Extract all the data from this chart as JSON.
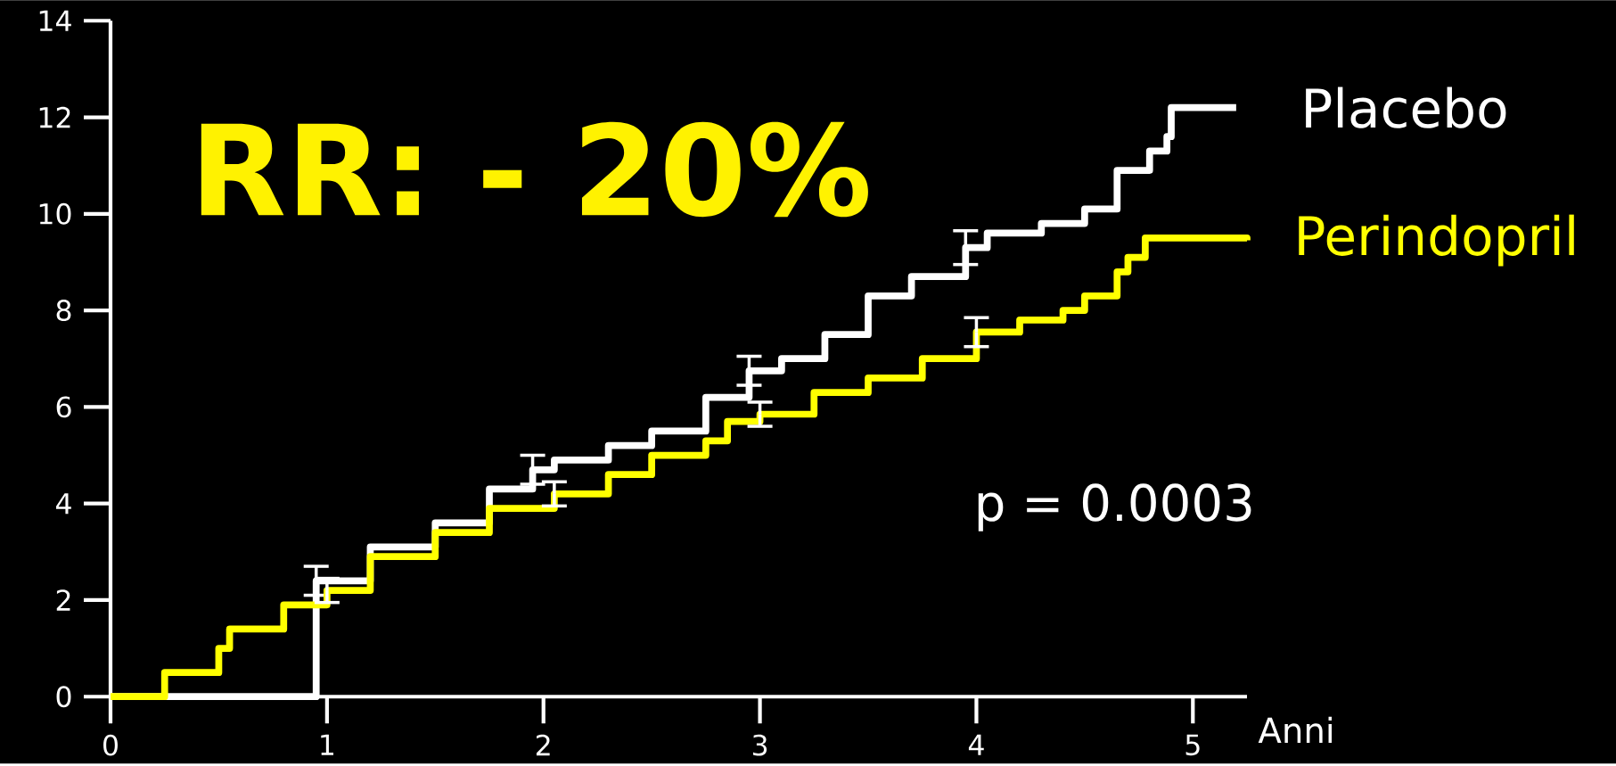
{
  "chart_data": {
    "type": "step",
    "xlabel": "Anni",
    "annotations": [
      "RR: - 20%",
      "p = 0.0003"
    ],
    "xlim": [
      0,
      5.25
    ],
    "xticks": [
      0,
      1,
      2,
      3,
      4,
      5
    ],
    "ylim": [
      0,
      14
    ],
    "yticks": [
      0,
      2,
      4,
      6,
      8,
      10,
      12,
      14
    ],
    "marker": "none",
    "line_style": "solid",
    "series": [
      {
        "name": "Placebo",
        "color": "#ffffff",
        "x": [
          0,
          0.25,
          0.5,
          0.55,
          0.8,
          0.95,
          1.2,
          1.5,
          1.75,
          1.95,
          2.05,
          2.3,
          2.5,
          2.75,
          2.95,
          3.1,
          3.3,
          3.5,
          3.7,
          3.95,
          4.05,
          4.3,
          4.5,
          4.65,
          4.8,
          4.88,
          4.9,
          5.2
        ],
        "values": [
          0,
          null,
          null,
          null,
          null,
          2.4,
          3.1,
          3.6,
          4.3,
          4.7,
          4.9,
          5.2,
          5.5,
          6.2,
          6.75,
          7.0,
          7.5,
          8.3,
          8.7,
          9.3,
          9.6,
          9.8,
          10.1,
          10.9,
          11.3,
          11.6,
          12.2,
          12.2
        ],
        "errors": [
          null,
          null,
          null,
          null,
          null,
          0.3,
          null,
          null,
          null,
          0.3,
          null,
          null,
          null,
          null,
          0.3,
          null,
          null,
          null,
          null,
          0.35,
          null,
          null,
          null,
          null,
          null,
          null,
          null,
          null
        ]
      },
      {
        "name": "Perindopril",
        "color": "#ffff00",
        "x": [
          0,
          0.25,
          0.5,
          0.55,
          0.8,
          1.0,
          1.2,
          1.5,
          1.75,
          2.05,
          2.3,
          2.5,
          2.75,
          2.85,
          3.0,
          3.25,
          3.5,
          3.75,
          4.0,
          4.2,
          4.4,
          4.5,
          4.65,
          4.7,
          4.78,
          5.25
        ],
        "values": [
          0,
          0.5,
          1.0,
          1.4,
          1.9,
          2.2,
          2.9,
          3.4,
          3.9,
          4.2,
          4.6,
          5.0,
          5.3,
          5.7,
          5.85,
          6.3,
          6.6,
          7.0,
          7.55,
          7.8,
          8.0,
          8.3,
          8.8,
          9.1,
          9.5,
          9.45
        ],
        "errors": [
          null,
          null,
          null,
          null,
          null,
          0.25,
          null,
          null,
          null,
          0.25,
          null,
          null,
          null,
          null,
          0.25,
          null,
          null,
          null,
          0.3,
          null,
          null,
          null,
          null,
          null,
          null,
          null
        ]
      }
    ]
  }
}
